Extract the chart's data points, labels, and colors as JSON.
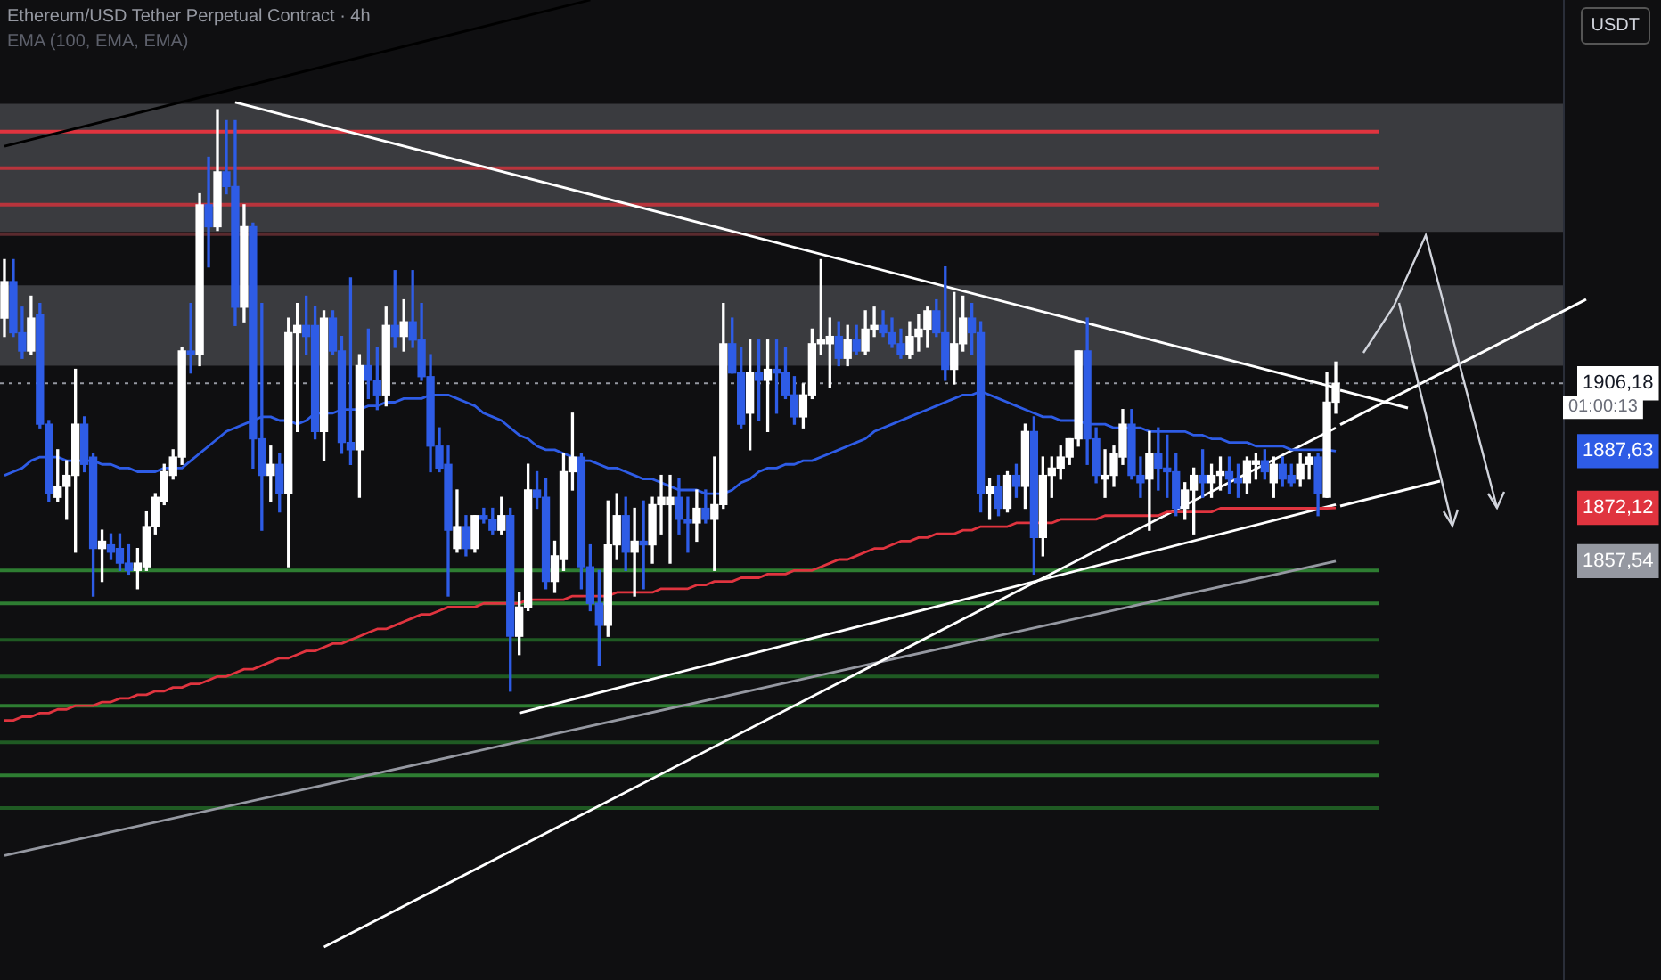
{
  "chart_data": {
    "type": "candlestick",
    "title": "Ethereum/USD Tether Perpetual Contract · 4h",
    "subtitle": "EMA (100, EMA, EMA)",
    "annotations": [
      "01:00:13",
      "USDT"
    ],
    "legend": false,
    "tick_labels": "y",
    "ylim": [
      1743,
      2011
    ],
    "yticks": [
      {
        "value": 1906.18,
        "label": "1906,18"
      },
      {
        "value": 1887.63,
        "label": "1887,63"
      },
      {
        "value": 1872.12,
        "label": "1872,12"
      },
      {
        "value": 1857.54,
        "label": "1857,54"
      }
    ],
    "categories": [
      null,
      null,
      null,
      null,
      null,
      null,
      null,
      null,
      null,
      null,
      null,
      null,
      null,
      null,
      null,
      null,
      null,
      null,
      null,
      null,
      null,
      null,
      null,
      null,
      null,
      null,
      null,
      null,
      null,
      null,
      null,
      null,
      null,
      null,
      null,
      null,
      null,
      null,
      null,
      null,
      null,
      null,
      null,
      null,
      null,
      null,
      null,
      null,
      null,
      null,
      null,
      null,
      null,
      null,
      null,
      null,
      null,
      null,
      null,
      null,
      null,
      null,
      null,
      null,
      null,
      null,
      null,
      null,
      null,
      null,
      null,
      null,
      null,
      null,
      null,
      null,
      null,
      null,
      null,
      null,
      null,
      null,
      null,
      null,
      null,
      null,
      null,
      null,
      null,
      null,
      null,
      null,
      null,
      null,
      null,
      null,
      null,
      null,
      null,
      null,
      null,
      null,
      null,
      null,
      null,
      null,
      null,
      null,
      null,
      null,
      null,
      null,
      null,
      null,
      null,
      null,
      null,
      null,
      null,
      null,
      null,
      null,
      null,
      null,
      null,
      null,
      null,
      null,
      null,
      null,
      null,
      null,
      null,
      null,
      null,
      null,
      null,
      null,
      null,
      null,
      null,
      null,
      null,
      null,
      null,
      null,
      null,
      null,
      null,
      null,
      null
    ],
    "colors": [
      "#ffffff",
      "#2e5ce6",
      "#2e5ce6",
      "#ffffff",
      "#2e5ce6",
      "#2e5ce6",
      "#ffffff",
      "#ffffff",
      "#ffffff",
      "#2e5ce6",
      "#2e5ce6",
      "#ffffff",
      "#2e5ce6",
      "#2e5ce6",
      "#2e5ce6",
      "#ffffff",
      "#ffffff",
      "#ffffff",
      "#ffffff",
      "#ffffff",
      "#ffffff",
      "#2e5ce6",
      "#ffffff",
      "#2e5ce6",
      "#ffffff",
      "#2e5ce6",
      "#2e5ce6",
      "#ffffff",
      "#2e5ce6",
      "#2e5ce6",
      "#ffffff",
      "#2e5ce6",
      "#ffffff",
      "#ffffff",
      "#2e5ce6",
      "#2e5ce6",
      "#ffffff",
      "#2e5ce6",
      "#2e5ce6",
      "#2e5ce6",
      "#ffffff",
      "#2e5ce6",
      "#2e5ce6",
      "#ffffff",
      "#2e5ce6",
      "#ffffff",
      "#2e5ce6",
      "#2e5ce6",
      "#2e5ce6",
      "#2e5ce6",
      "#2e5ce6",
      "#ffffff",
      "#2e5ce6",
      "#ffffff",
      "#2e5ce6",
      "#2e5ce6",
      "#ffffff",
      "#2e5ce6",
      "#ffffff",
      "#ffffff",
      "#2e5ce6",
      "#2e5ce6",
      "#ffffff",
      "#ffffff",
      "#ffffff",
      "#2e5ce6",
      "#2e5ce6",
      "#2e5ce6",
      "#ffffff",
      "#ffffff",
      "#2e5ce6",
      "#ffffff",
      "#2e5ce6",
      "#ffffff",
      "#ffffff",
      "#ffffff",
      "#2e5ce6",
      "#2e5ce6",
      "#ffffff",
      "#2e5ce6",
      "#ffffff",
      "#ffffff",
      "#2e5ce6",
      "#2e5ce6",
      "#ffffff",
      "#2e5ce6",
      "#ffffff",
      "#2e5ce6",
      "#2e5ce6",
      "#2e5ce6",
      "#ffffff",
      "#ffffff",
      "#ffffff",
      "#ffffff",
      "#2e5ce6",
      "#ffffff",
      "#2e5ce6",
      "#ffffff",
      "#ffffff",
      "#2e5ce6",
      "#2e5ce6",
      "#2e5ce6",
      "#ffffff",
      "#ffffff",
      "#ffffff",
      "#2e5ce6",
      "#2e5ce6",
      "#ffffff",
      "#ffffff",
      "#2e5ce6",
      "#2e5ce6",
      "#ffffff",
      "#2e5ce6",
      "#ffffff",
      "#2e5ce6",
      "#ffffff",
      "#2e5ce6",
      "#ffffff",
      "#ffffff",
      "#ffffff",
      "#ffffff",
      "#ffffff",
      "#2e5ce6",
      "#2e5ce6",
      "#ffffff",
      "#ffffff",
      "#ffffff",
      "#2e5ce6",
      "#2e5ce6",
      "#ffffff",
      "#2e5ce6",
      "#2e5ce6",
      "#2e5ce6",
      "#ffffff",
      "#ffffff",
      "#2e5ce6",
      "#ffffff",
      "#ffffff",
      "#2e5ce6",
      "#2e5ce6",
      "#ffffff",
      "#ffffff",
      "#2e5ce6",
      "#ffffff",
      "#2e5ce6",
      "#2e5ce6",
      "#ffffff",
      "#ffffff",
      "#2e5ce6",
      "#ffffff",
      "#ffffff"
    ],
    "ohlc": [
      [
        1924,
        1940,
        1919,
        1934
      ],
      [
        1934,
        1940,
        1919,
        1920
      ],
      [
        1920,
        1927,
        1913,
        1915
      ],
      [
        1915,
        1930,
        1914,
        1924
      ],
      [
        1925,
        1928,
        1894,
        1895
      ],
      [
        1895,
        1896,
        1874,
        1876
      ],
      [
        1875,
        1888,
        1874,
        1878
      ],
      [
        1878,
        1885,
        1869,
        1881
      ],
      [
        1881,
        1910,
        1860,
        1895
      ],
      [
        1895,
        1897,
        1882,
        1884
      ],
      [
        1886,
        1887,
        1848,
        1861
      ],
      [
        1861,
        1866,
        1852,
        1863
      ],
      [
        1862,
        1865,
        1858,
        1860
      ],
      [
        1861,
        1865,
        1855,
        1857
      ],
      [
        1857,
        1862,
        1854,
        1855
      ],
      [
        1855,
        1861,
        1850,
        1857
      ],
      [
        1856,
        1871,
        1855,
        1867
      ],
      [
        1867,
        1876,
        1865,
        1875
      ],
      [
        1874,
        1884,
        1873,
        1882
      ],
      [
        1881,
        1888,
        1880,
        1886
      ],
      [
        1886,
        1916,
        1884,
        1915
      ],
      [
        1915,
        1928,
        1909,
        1914
      ],
      [
        1914,
        1958,
        1911,
        1955
      ],
      [
        1955,
        1968,
        1938,
        1949
      ],
      [
        1949,
        1981,
        1948,
        1964
      ],
      [
        1964,
        1978,
        1958,
        1960
      ],
      [
        1960,
        1978,
        1922,
        1927
      ],
      [
        1927,
        1955,
        1923,
        1949
      ],
      [
        1949,
        1950,
        1883,
        1891
      ],
      [
        1891,
        1928,
        1866,
        1881
      ],
      [
        1881,
        1889,
        1874,
        1884
      ],
      [
        1884,
        1887,
        1871,
        1876
      ],
      [
        1876,
        1924,
        1856,
        1920
      ],
      [
        1920,
        1928,
        1893,
        1922
      ],
      [
        1922,
        1930,
        1914,
        1919
      ],
      [
        1922,
        1927,
        1891,
        1893
      ],
      [
        1893,
        1926,
        1885,
        1924
      ],
      [
        1924,
        1926,
        1914,
        1915
      ],
      [
        1915,
        1919,
        1887,
        1890
      ],
      [
        1890,
        1935,
        1884,
        1888
      ],
      [
        1888,
        1914,
        1875,
        1911
      ],
      [
        1911,
        1921,
        1902,
        1907
      ],
      [
        1907,
        1916,
        1899,
        1903
      ],
      [
        1903,
        1927,
        1900,
        1922
      ],
      [
        1922,
        1937,
        1916,
        1919
      ],
      [
        1919,
        1929,
        1915,
        1923
      ],
      [
        1923,
        1937,
        1916,
        1918
      ],
      [
        1918,
        1928,
        1907,
        1908
      ],
      [
        1908,
        1914,
        1882,
        1889
      ],
      [
        1889,
        1894,
        1882,
        1883
      ],
      [
        1884,
        1889,
        1848,
        1866
      ],
      [
        1861,
        1877,
        1860,
        1867
      ],
      [
        1867,
        1870,
        1859,
        1861
      ],
      [
        1861,
        1870,
        1860,
        1870
      ],
      [
        1870,
        1872,
        1868,
        1869
      ],
      [
        1869,
        1872,
        1865,
        1866
      ],
      [
        1866,
        1875,
        1865,
        1870
      ],
      [
        1870,
        1872,
        1822,
        1837
      ],
      [
        1837,
        1849,
        1832,
        1845
      ],
      [
        1845,
        1884,
        1844,
        1877
      ],
      [
        1877,
        1882,
        1872,
        1875
      ],
      [
        1875,
        1880,
        1850,
        1852
      ],
      [
        1852,
        1863,
        1849,
        1859
      ],
      [
        1858,
        1887,
        1855,
        1882
      ],
      [
        1882,
        1898,
        1877,
        1886
      ],
      [
        1886,
        1887,
        1850,
        1856
      ],
      [
        1856,
        1862,
        1844,
        1846
      ],
      [
        1846,
        1855,
        1829,
        1840
      ],
      [
        1840,
        1874,
        1837,
        1862
      ],
      [
        1862,
        1876,
        1858,
        1870
      ],
      [
        1870,
        1875,
        1855,
        1860
      ],
      [
        1860,
        1872,
        1848,
        1863
      ],
      [
        1863,
        1874,
        1850,
        1862
      ],
      [
        1862,
        1875,
        1857,
        1873
      ],
      [
        1873,
        1881,
        1865,
        1875
      ],
      [
        1873,
        1881,
        1857,
        1875
      ],
      [
        1875,
        1880,
        1865,
        1869
      ],
      [
        1869,
        1875,
        1860,
        1868
      ],
      [
        1868,
        1877,
        1863,
        1872
      ],
      [
        1872,
        1877,
        1868,
        1869
      ],
      [
        1869,
        1886,
        1855,
        1873
      ],
      [
        1873,
        1928,
        1872,
        1917
      ],
      [
        1917,
        1924,
        1909,
        1909
      ],
      [
        1909,
        1916,
        1894,
        1895
      ],
      [
        1898,
        1918,
        1888,
        1909
      ],
      [
        1909,
        1918,
        1896,
        1907
      ],
      [
        1907,
        1918,
        1893,
        1910
      ],
      [
        1910,
        1918,
        1898,
        1909
      ],
      [
        1909,
        1916,
        1902,
        1903
      ],
      [
        1903,
        1908,
        1895,
        1897
      ],
      [
        1897,
        1906,
        1894,
        1903
      ],
      [
        1903,
        1921,
        1902,
        1917
      ],
      [
        1917,
        1940,
        1914,
        1918
      ],
      [
        1917,
        1924,
        1905,
        1919
      ],
      [
        1919,
        1923,
        1911,
        1913
      ],
      [
        1913,
        1922,
        1911,
        1918
      ],
      [
        1918,
        1922,
        1914,
        1915
      ],
      [
        1915,
        1926,
        1914,
        1921
      ],
      [
        1921,
        1927,
        1919,
        1922
      ],
      [
        1922,
        1926,
        1919,
        1920
      ],
      [
        1920,
        1924,
        1916,
        1917
      ],
      [
        1917,
        1921,
        1913,
        1914
      ],
      [
        1914,
        1923,
        1913,
        1919
      ],
      [
        1919,
        1925,
        1915,
        1921
      ],
      [
        1921,
        1927,
        1916,
        1926
      ],
      [
        1926,
        1929,
        1919,
        1920
      ],
      [
        1920,
        1938,
        1907,
        1910
      ],
      [
        1910,
        1931,
        1906,
        1917
      ],
      [
        1917,
        1930,
        1915,
        1924
      ],
      [
        1924,
        1928,
        1914,
        1920
      ],
      [
        1920,
        1923,
        1871,
        1876
      ],
      [
        1876,
        1880,
        1869,
        1878
      ],
      [
        1878,
        1881,
        1870,
        1872
      ],
      [
        1872,
        1882,
        1871,
        1881
      ],
      [
        1881,
        1884,
        1875,
        1878
      ],
      [
        1878,
        1895,
        1872,
        1893
      ],
      [
        1893,
        1897,
        1854,
        1864
      ],
      [
        1864,
        1886,
        1859,
        1881
      ],
      [
        1881,
        1886,
        1875,
        1883
      ],
      [
        1883,
        1889,
        1880,
        1886
      ],
      [
        1886,
        1891,
        1884,
        1891
      ],
      [
        1891,
        1915,
        1889,
        1915
      ],
      [
        1915,
        1924,
        1884,
        1891
      ],
      [
        1891,
        1894,
        1879,
        1881
      ],
      [
        1880,
        1888,
        1875,
        1881
      ],
      [
        1881,
        1889,
        1878,
        1887
      ],
      [
        1886,
        1899,
        1884,
        1895
      ],
      [
        1895,
        1899,
        1880,
        1881
      ],
      [
        1881,
        1886,
        1875,
        1879
      ],
      [
        1880,
        1893,
        1866,
        1887
      ],
      [
        1887,
        1894,
        1877,
        1883
      ],
      [
        1883,
        1892,
        1875,
        1882
      ],
      [
        1882,
        1887,
        1870,
        1872
      ],
      [
        1872,
        1879,
        1869,
        1877
      ],
      [
        1877,
        1883,
        1865,
        1881
      ],
      [
        1881,
        1888,
        1875,
        1879
      ],
      [
        1879,
        1884,
        1875,
        1881
      ],
      [
        1881,
        1886,
        1877,
        1882
      ],
      [
        1882,
        1886,
        1876,
        1880
      ],
      [
        1880,
        1884,
        1875,
        1879
      ],
      [
        1879,
        1886,
        1876,
        1885
      ],
      [
        1884,
        1887,
        1880,
        1885
      ],
      [
        1885,
        1888,
        1880,
        1882
      ],
      [
        1879,
        1886,
        1875,
        1884
      ],
      [
        1884,
        1886,
        1878,
        1880
      ],
      [
        1881,
        1884,
        1878,
        1879
      ],
      [
        1880,
        1887,
        1878,
        1884
      ],
      [
        1884,
        1887,
        1880,
        1886
      ],
      [
        1886,
        1887,
        1870,
        1876
      ],
      [
        1875,
        1909,
        1875,
        1901
      ],
      [
        1901,
        1912,
        1898,
        1906.18
      ]
    ],
    "series": [
      {
        "type": "line",
        "color": "#2e5ce6",
        "values": [
          1881,
          1882,
          1883,
          1885,
          1886,
          1886,
          1886,
          1885,
          1885,
          1885,
          1885,
          1884,
          1884,
          1883,
          1883,
          1882,
          1882,
          1882,
          1883,
          1883,
          1883,
          1885,
          1887,
          1889,
          1891,
          1893,
          1894,
          1895,
          1896,
          1897,
          1897,
          1896,
          1896,
          1895,
          1896,
          1898,
          1898,
          1898,
          1899,
          1899,
          1899,
          1900,
          1900,
          1901,
          1901,
          1902,
          1902,
          1902,
          1903,
          1903,
          1903,
          1902,
          1901,
          1900,
          1898,
          1897,
          1896,
          1894,
          1892,
          1891,
          1889,
          1888,
          1888,
          1887,
          1886,
          1885,
          1885,
          1884,
          1883,
          1883,
          1882,
          1881,
          1880,
          1880,
          1879,
          1878,
          1877,
          1877,
          1877,
          1876,
          1876,
          1876,
          1877,
          1879,
          1880,
          1882,
          1883,
          1883,
          1884,
          1884,
          1885,
          1885,
          1886,
          1887,
          1888,
          1889,
          1890,
          1891,
          1893,
          1894,
          1895,
          1896,
          1897,
          1898,
          1899,
          1900,
          1901,
          1902,
          1903,
          1903,
          1904,
          1903,
          1902,
          1901,
          1900,
          1899,
          1898,
          1897,
          1897,
          1896,
          1896,
          1896,
          1895,
          1895,
          1895,
          1894,
          1894,
          1894,
          1894,
          1893,
          1893,
          1893,
          1893,
          1893,
          1892,
          1892,
          1891,
          1891,
          1890,
          1890,
          1890,
          1889,
          1889,
          1889,
          1889,
          1888,
          1888,
          1888,
          1888,
          1888,
          1887.63
        ]
      },
      {
        "type": "line",
        "color": "#e0343f",
        "values": [
          1814,
          1814,
          1815,
          1815,
          1816,
          1816,
          1817,
          1817,
          1818,
          1818,
          1818,
          1819,
          1819,
          1820,
          1820,
          1821,
          1821,
          1822,
          1822,
          1823,
          1823,
          1824,
          1824,
          1825,
          1826,
          1826,
          1827,
          1828,
          1828,
          1829,
          1830,
          1831,
          1831,
          1832,
          1833,
          1833,
          1834,
          1835,
          1835,
          1836,
          1837,
          1838,
          1839,
          1839,
          1840,
          1841,
          1842,
          1843,
          1843,
          1844,
          1845,
          1845,
          1845,
          1845,
          1846,
          1846,
          1846,
          1846,
          1846,
          1847,
          1847,
          1847,
          1847,
          1847,
          1848,
          1848,
          1848,
          1848,
          1848,
          1849,
          1849,
          1849,
          1849,
          1849,
          1850,
          1850,
          1850,
          1850,
          1851,
          1851,
          1852,
          1852,
          1852,
          1853,
          1853,
          1853,
          1854,
          1854,
          1854,
          1855,
          1855,
          1855,
          1856,
          1857,
          1858,
          1858,
          1859,
          1860,
          1861,
          1861,
          1862,
          1863,
          1863,
          1864,
          1864,
          1865,
          1865,
          1865,
          1866,
          1866,
          1867,
          1867,
          1867,
          1867,
          1868,
          1868,
          1868,
          1868,
          1868,
          1869,
          1869,
          1869,
          1869,
          1869,
          1870,
          1870,
          1870,
          1870,
          1870,
          1870,
          1870,
          1871,
          1871,
          1871,
          1871,
          1871,
          1871,
          1872,
          1872,
          1872,
          1872,
          1872,
          1872,
          1872,
          1872,
          1872,
          1872,
          1872,
          1872,
          1872,
          1872.12
        ]
      },
      {
        "type": "line",
        "color": "#ffffff",
        "values": [
          null,
          null,
          null,
          null,
          null,
          null,
          null,
          null,
          null,
          null,
          null,
          null,
          null,
          null,
          null,
          null,
          null,
          null,
          null,
          null,
          null,
          null,
          null,
          null,
          null,
          null,
          1983,
          null,
          null,
          null,
          null,
          null,
          null,
          null,
          null,
          null,
          null,
          null,
          null,
          null,
          null,
          null,
          null,
          null,
          null,
          null,
          null,
          null,
          null,
          null,
          null,
          null,
          null,
          null,
          null,
          null,
          null,
          null,
          null,
          null,
          null,
          null,
          null,
          null,
          null,
          null,
          null,
          null,
          null,
          null,
          null,
          null,
          null,
          null,
          null,
          null,
          null,
          null,
          null,
          null,
          null,
          null,
          null,
          null,
          null,
          null,
          null,
          null,
          null,
          null,
          null,
          null,
          null,
          null,
          null,
          null,
          null,
          null,
          null,
          null,
          null,
          null,
          null,
          null,
          null,
          null,
          null,
          null,
          null,
          null,
          null,
          null,
          null,
          null,
          null,
          null,
          null,
          null,
          null,
          null,
          null,
          null,
          null,
          null,
          null,
          null,
          null,
          null,
          null,
          null,
          null,
          null,
          null,
          null,
          null,
          null,
          null,
          null,
          null,
          null,
          null,
          null,
          null,
          null,
          null,
          null,
          null,
          null,
          null,
          null,
          1905
        ]
      },
      {
        "type": "line",
        "color": "#ffffff",
        "values": [
          null,
          null,
          null,
          null,
          null,
          null,
          null,
          null,
          null,
          null,
          null,
          null,
          null,
          null,
          null,
          null,
          null,
          null,
          null,
          null,
          null,
          null,
          null,
          null,
          null,
          null,
          null,
          null,
          null,
          null,
          null,
          null,
          null,
          null,
          null,
          null,
          1752,
          null,
          null,
          null,
          null,
          null,
          null,
          null,
          null,
          null,
          null,
          null,
          null,
          null,
          null,
          null,
          null,
          null,
          null,
          null,
          null,
          null,
          null,
          null,
          null,
          null,
          null,
          null,
          null,
          null,
          null,
          null,
          null,
          null,
          null,
          null,
          null,
          null,
          null,
          null,
          null,
          null,
          null,
          null,
          null,
          null,
          null,
          null,
          null,
          null,
          null,
          null,
          null,
          null,
          null,
          null,
          null,
          null,
          null,
          null,
          null,
          null,
          null,
          null,
          null,
          null,
          null,
          null,
          null,
          null,
          null,
          null,
          null,
          null,
          null,
          null,
          null,
          null,
          null,
          null,
          null,
          null,
          null,
          null,
          null,
          null,
          null,
          null,
          null,
          null,
          null,
          null,
          null,
          null,
          null,
          null,
          null,
          null,
          null,
          null,
          null,
          null,
          null,
          null,
          null,
          null,
          null,
          null,
          null,
          null,
          null,
          null,
          null,
          null,
          1894
        ]
      },
      {
        "type": "line",
        "color": "#ffffff",
        "values": [
          null,
          null,
          null,
          null,
          null,
          null,
          null,
          null,
          null,
          null,
          null,
          null,
          null,
          null,
          null,
          null,
          null,
          null,
          null,
          null,
          null,
          null,
          null,
          null,
          null,
          null,
          null,
          null,
          null,
          null,
          null,
          null,
          null,
          null,
          null,
          null,
          null,
          null,
          null,
          null,
          null,
          null,
          null,
          null,
          null,
          null,
          null,
          null,
          null,
          null,
          null,
          null,
          null,
          null,
          null,
          null,
          null,
          null,
          1816,
          null,
          null,
          null,
          null,
          null,
          null,
          null,
          null,
          null,
          null,
          null,
          null,
          null,
          null,
          null,
          null,
          null,
          null,
          null,
          null,
          null,
          null,
          null,
          null,
          null,
          null,
          null,
          null,
          null,
          null,
          null,
          null,
          null,
          null,
          null,
          null,
          null,
          null,
          null,
          null,
          null,
          null,
          null,
          null,
          null,
          null,
          null,
          null,
          null,
          null,
          null,
          null,
          null,
          null,
          null,
          null,
          null,
          null,
          null,
          null,
          null,
          null,
          null,
          null,
          null,
          null,
          null,
          null,
          null,
          null,
          null,
          null,
          null,
          null,
          null,
          null,
          null,
          null,
          null,
          null,
          null,
          null,
          null,
          null,
          null,
          null,
          null,
          null,
          null,
          null,
          null,
          1873
        ]
      },
      {
        "type": "line",
        "color": "#9598a1",
        "values": [
          1777,
          null,
          null,
          null,
          null,
          null,
          null,
          null,
          null,
          null,
          null,
          null,
          null,
          null,
          null,
          null,
          null,
          null,
          null,
          null,
          null,
          null,
          null,
          null,
          null,
          null,
          null,
          null,
          null,
          null,
          null,
          null,
          null,
          null,
          null,
          null,
          null,
          null,
          null,
          null,
          null,
          null,
          null,
          null,
          null,
          null,
          null,
          null,
          null,
          null,
          null,
          null,
          null,
          null,
          null,
          null,
          null,
          null,
          null,
          null,
          null,
          null,
          null,
          null,
          null,
          null,
          null,
          null,
          null,
          null,
          null,
          null,
          null,
          null,
          null,
          null,
          null,
          null,
          null,
          null,
          null,
          null,
          null,
          null,
          null,
          null,
          null,
          null,
          null,
          null,
          null,
          null,
          null,
          null,
          null,
          null,
          null,
          null,
          null,
          null,
          null,
          null,
          null,
          null,
          null,
          null,
          null,
          null,
          null,
          null,
          null,
          null,
          null,
          null,
          null,
          null,
          null,
          null,
          null,
          null,
          null,
          null,
          null,
          null,
          null,
          null,
          null,
          null,
          null,
          null,
          null,
          null,
          null,
          null,
          null,
          null,
          null,
          null,
          null,
          null,
          null,
          null,
          null,
          null,
          null,
          null,
          null,
          null,
          null,
          null,
          1857.54
        ]
      },
      {
        "type": "line",
        "color": "#000000",
        "values": [
          1971,
          null,
          null,
          null,
          null,
          null,
          null,
          null,
          null,
          null,
          null,
          null,
          null,
          null,
          null,
          null,
          null,
          null,
          null,
          null,
          null,
          null,
          null,
          null,
          null,
          null,
          null,
          null,
          null,
          null,
          null,
          null,
          null,
          null,
          null,
          null,
          null,
          null,
          null,
          null,
          null,
          null,
          null,
          null,
          null,
          null,
          null,
          null,
          null,
          null,
          null,
          null,
          null,
          null,
          null,
          null,
          null,
          null,
          null,
          null,
          null,
          null,
          null,
          null,
          null,
          null,
          2011,
          null,
          null,
          null,
          null,
          null,
          null,
          null,
          null,
          null,
          null,
          null,
          null,
          null,
          null,
          null,
          null,
          null,
          null,
          null,
          null,
          null,
          null,
          null,
          null,
          null,
          null,
          null,
          null,
          null,
          null,
          null,
          null,
          null,
          null,
          null,
          null,
          null,
          null,
          null,
          null,
          null,
          null,
          null,
          null,
          null,
          null,
          null,
          null,
          null,
          null,
          null,
          null,
          null,
          null,
          null,
          null,
          null,
          null,
          null,
          null,
          null,
          null,
          null,
          null,
          null,
          null,
          null,
          null,
          null,
          null,
          null,
          null,
          null,
          null,
          null,
          null,
          null,
          null,
          null,
          null,
          null,
          null,
          null,
          null
        ]
      }
    ],
    "bands": [
      {
        "axis": "y",
        "from": 1947.6,
        "to": 1982.6,
        "color": "#3a3b3f"
      },
      {
        "axis": "y",
        "from": 1911,
        "to": 1933,
        "color": "#3a3b3f"
      }
    ],
    "ref_lines": [
      {
        "axis": "y",
        "value": 1906.18,
        "color": "#9598a1",
        "line_style": "dotted"
      },
      {
        "axis": "y",
        "value": 1975,
        "color": "#e0343f"
      },
      {
        "axis": "y",
        "value": 1965,
        "color": "#b8343c"
      },
      {
        "axis": "y",
        "value": 1955,
        "color": "#b8343c"
      },
      {
        "axis": "y",
        "value": 1947,
        "color": "#5a2a2e"
      },
      {
        "axis": "y",
        "value": 1855,
        "color": "#2e7d32"
      },
      {
        "axis": "y",
        "value": 1846,
        "color": "#2e7d32"
      },
      {
        "axis": "y",
        "value": 1836,
        "color": "#1f5a23"
      },
      {
        "axis": "y",
        "value": 1826,
        "color": "#1f5a23"
      },
      {
        "axis": "y",
        "value": 1818,
        "color": "#2e7d32"
      },
      {
        "axis": "y",
        "value": 1808,
        "color": "#1f5a23"
      },
      {
        "axis": "y",
        "value": 1799,
        "color": "#2e7d32"
      },
      {
        "axis": "y",
        "value": 1790,
        "color": "#1f5a23"
      }
    ]
  }
}
